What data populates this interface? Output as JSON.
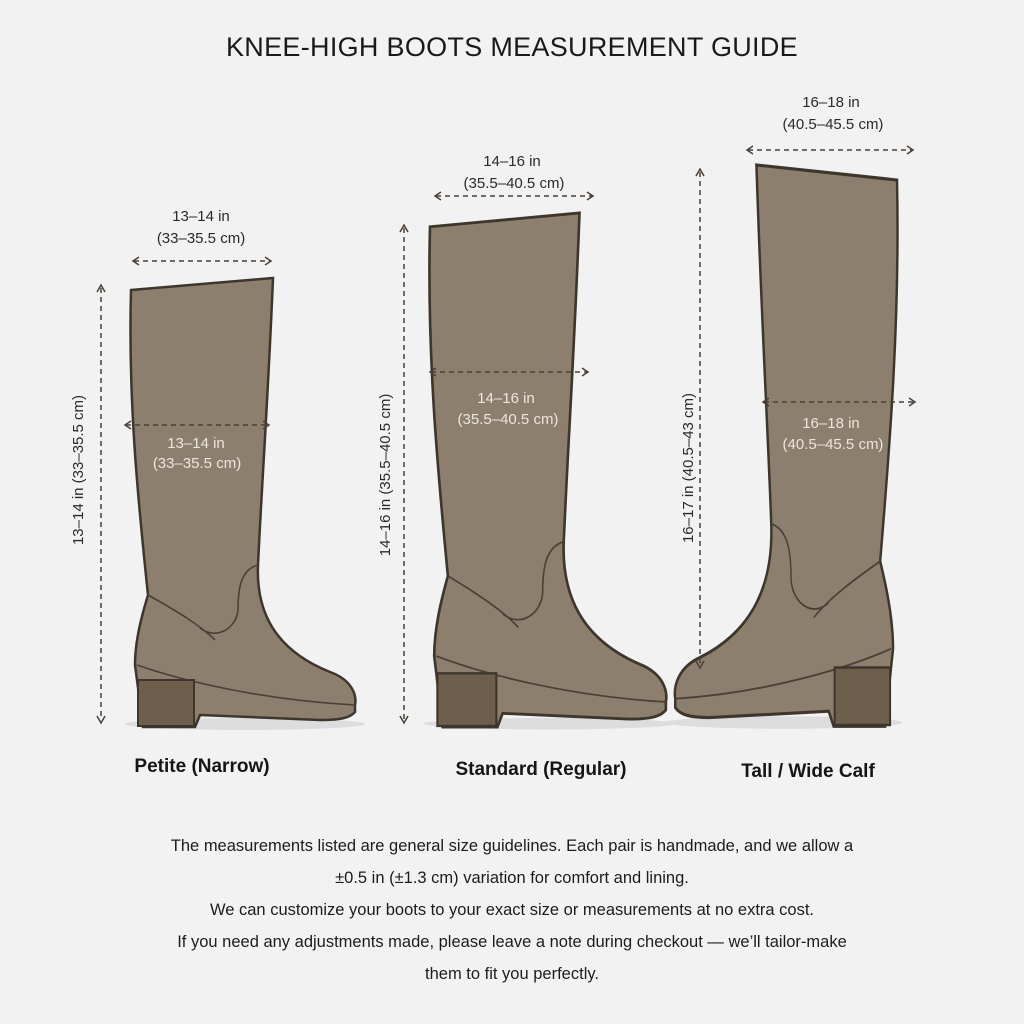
{
  "title": "KNEE-HIGH BOOTS MEASUREMENT GUIDE",
  "colors": {
    "background": "#f2f2f2",
    "boot": "#8c7f6d",
    "outline": "#3e362d"
  },
  "boots": [
    {
      "label": "Petite (Narrow)",
      "top_in": "13–14 in",
      "top_cm": "(33–35.5 cm)",
      "calf_in": "13–14 in",
      "calf_cm": "(33–35.5 cm)",
      "height": "13–14 in (33–35.5 cm)"
    },
    {
      "label": "Standard (Regular)",
      "top_in": "14–16 in",
      "top_cm": "(35.5–40.5 cm)",
      "calf_in": "14–16 in",
      "calf_cm": "(35.5–40.5 cm)",
      "height": "14–16 in (35.5–40.5 cm)"
    },
    {
      "label": "Tall / Wide Calf",
      "top_in": "16–18 in",
      "top_cm": "(40.5–45.5 cm)",
      "calf_in": "16–18 in",
      "calf_cm": "(40.5–45.5 cm)",
      "height": "16–17 in (40.5–43 cm)"
    }
  ],
  "notes": [
    "The measurements listed are general size guidelines. Each pair is handmade, and we allow a",
    "±0.5 in (±1.3 cm) variation for comfort and lining.",
    "We can customize your boots to your exact size or measurements at no extra cost.",
    "If you need any adjustments made, please leave a note during checkout — we’ll tailor-make",
    "them to fit you perfectly."
  ]
}
